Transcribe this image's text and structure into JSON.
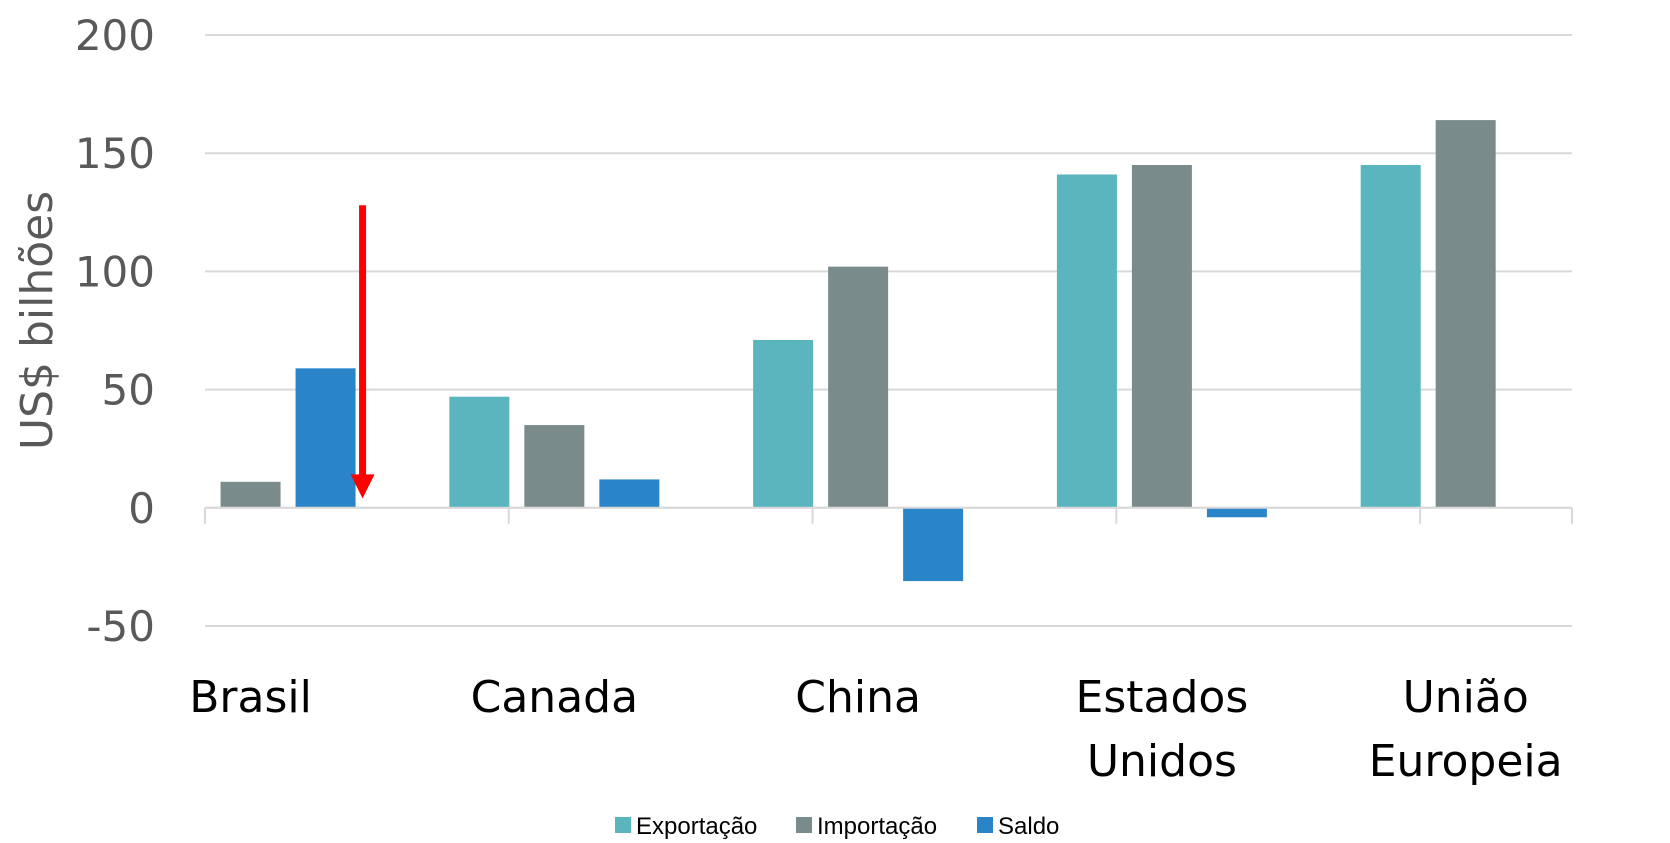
{
  "chart_data": {
    "type": "bar",
    "title": "",
    "xlabel": "",
    "ylabel": "US$ bilhões",
    "ylim": [
      -50,
      200
    ],
    "yticks": [
      200,
      150,
      100,
      50,
      0,
      -50
    ],
    "grid": true,
    "legend_position": "bottom",
    "categories": [
      "Brasil",
      "Canada",
      "China",
      "Estados Unidos",
      "União Europeia"
    ],
    "category_lines": [
      [
        "Brasil"
      ],
      [
        "Canada"
      ],
      [
        "China"
      ],
      [
        "Estados",
        "Unidos"
      ],
      [
        "União",
        "Europeia"
      ]
    ],
    "series": [
      {
        "name": "Exportação",
        "color": "#5AB5BE",
        "values": [
          null,
          47,
          71,
          141,
          145
        ]
      },
      {
        "name": "Importação",
        "color": "#7A8B8C",
        "values": [
          11,
          35,
          102,
          145,
          164
        ]
      },
      {
        "name": "Saldo",
        "color": "#2A84C8",
        "values": [
          59,
          12,
          -31,
          -4,
          null
        ]
      }
    ],
    "annotation": {
      "type": "arrow",
      "color": "#FF0000",
      "category": "Brasil",
      "from_value": 128,
      "to_value": 4
    }
  }
}
